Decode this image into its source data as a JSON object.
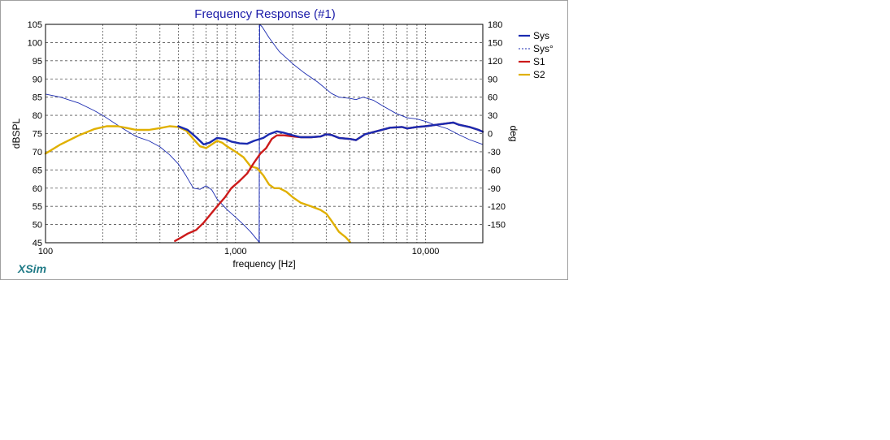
{
  "app": {
    "brand": "XSim"
  },
  "colors": {
    "sys": "#1a2ab0",
    "sys_phase": "#1a2ab0",
    "s1": "#cc1a1a",
    "s2": "#e0b000",
    "title": "#1a1aa8",
    "brand": "#1f7a86"
  },
  "chart_data": {
    "type": "line",
    "title": "Frequency Response (#1)",
    "xlabel": "frequency [Hz]",
    "ylabel": "dBSPL",
    "y2label": "deg",
    "xscale": "log",
    "xlim": [
      100,
      20000
    ],
    "ylim": [
      45,
      105
    ],
    "y2lim": [
      -180,
      180
    ],
    "grid": true,
    "legend": "right",
    "x_ticks": [
      {
        "value": 100,
        "label": "100"
      },
      {
        "value": 1000,
        "label": "1,000"
      },
      {
        "value": 10000,
        "label": "10,000"
      }
    ],
    "y_ticks": [
      45,
      50,
      55,
      60,
      65,
      70,
      75,
      80,
      85,
      90,
      95,
      100,
      105
    ],
    "y2_ticks": [
      -150,
      -120,
      -90,
      -60,
      -30,
      0,
      30,
      60,
      90,
      120,
      150,
      180
    ],
    "series": [
      {
        "name": "Sys",
        "axis": "left",
        "style": "solid-thick",
        "color": "#1a2ab0",
        "points": [
          [
            500,
            77.0
          ],
          [
            560,
            76.0
          ],
          [
            620,
            74.0
          ],
          [
            680,
            72.0
          ],
          [
            730,
            72.5
          ],
          [
            800,
            73.8
          ],
          [
            880,
            73.5
          ],
          [
            950,
            72.8
          ],
          [
            1050,
            72.3
          ],
          [
            1150,
            72.2
          ],
          [
            1250,
            73.0
          ],
          [
            1400,
            73.8
          ],
          [
            1500,
            74.8
          ],
          [
            1650,
            75.6
          ],
          [
            1800,
            75.2
          ],
          [
            2000,
            74.5
          ],
          [
            2200,
            74.0
          ],
          [
            2500,
            74.0
          ],
          [
            2800,
            74.2
          ],
          [
            3000,
            74.8
          ],
          [
            3200,
            74.6
          ],
          [
            3500,
            73.8
          ],
          [
            4000,
            73.5
          ],
          [
            4300,
            73.2
          ],
          [
            4800,
            74.8
          ],
          [
            5500,
            75.6
          ],
          [
            6500,
            76.6
          ],
          [
            7500,
            76.8
          ],
          [
            8000,
            76.4
          ],
          [
            9000,
            76.8
          ],
          [
            10000,
            77.0
          ],
          [
            11000,
            77.3
          ],
          [
            13000,
            77.8
          ],
          [
            14000,
            78.0
          ],
          [
            15000,
            77.4
          ],
          [
            17000,
            76.8
          ],
          [
            19000,
            76.0
          ],
          [
            20000,
            75.5
          ]
        ]
      },
      {
        "name": "Sys°",
        "axis": "right",
        "style": "thin",
        "color": "#1a2ab0",
        "points": [
          [
            100,
            65
          ],
          [
            120,
            60
          ],
          [
            150,
            50
          ],
          [
            180,
            38
          ],
          [
            200,
            30
          ],
          [
            250,
            10
          ],
          [
            300,
            -5
          ],
          [
            350,
            -12
          ],
          [
            400,
            -22
          ],
          [
            450,
            -35
          ],
          [
            500,
            -50
          ],
          [
            550,
            -70
          ],
          [
            600,
            -90
          ],
          [
            650,
            -92
          ],
          [
            700,
            -86
          ],
          [
            750,
            -93
          ],
          [
            800,
            -108
          ],
          [
            900,
            -125
          ],
          [
            1000,
            -138
          ],
          [
            1100,
            -150
          ],
          [
            1200,
            -162
          ],
          [
            1300,
            -175
          ],
          [
            1330,
            -179
          ],
          [
            1340,
            180
          ],
          [
            1380,
            176
          ],
          [
            1500,
            158
          ],
          [
            1700,
            135
          ],
          [
            2000,
            115
          ],
          [
            2300,
            100
          ],
          [
            2700,
            85
          ],
          [
            3200,
            66
          ],
          [
            3500,
            60
          ],
          [
            4000,
            58
          ],
          [
            4300,
            56
          ],
          [
            4700,
            60
          ],
          [
            5300,
            55
          ],
          [
            6000,
            45
          ],
          [
            7000,
            33
          ],
          [
            8000,
            26
          ],
          [
            9000,
            24
          ],
          [
            10000,
            20
          ],
          [
            11000,
            15
          ],
          [
            13000,
            8
          ],
          [
            15000,
            -2
          ],
          [
            17000,
            -10
          ],
          [
            20000,
            -18
          ]
        ]
      },
      {
        "name": "Sys°-wrap",
        "axis": "right",
        "style": "dashed",
        "color": "#1a2ab0",
        "points": [
          [
            1335,
            -180
          ],
          [
            1335,
            180
          ]
        ]
      },
      {
        "name": "S1",
        "axis": "left",
        "style": "solid-thick",
        "color": "#cc1a1a",
        "points": [
          [
            480,
            45.5
          ],
          [
            520,
            46.5
          ],
          [
            560,
            47.5
          ],
          [
            620,
            48.5
          ],
          [
            680,
            50.5
          ],
          [
            730,
            52.5
          ],
          [
            800,
            55.0
          ],
          [
            880,
            57.5
          ],
          [
            950,
            60.0
          ],
          [
            1050,
            62.0
          ],
          [
            1150,
            64.0
          ],
          [
            1250,
            67.0
          ],
          [
            1350,
            69.5
          ],
          [
            1450,
            71.0
          ],
          [
            1550,
            73.5
          ],
          [
            1650,
            74.5
          ],
          [
            1800,
            74.5
          ],
          [
            2000,
            74.2
          ],
          [
            2200,
            74.0
          ],
          [
            2500,
            74.0
          ],
          [
            2800,
            74.2
          ],
          [
            3000,
            74.8
          ],
          [
            3200,
            74.6
          ],
          [
            3500,
            73.8
          ],
          [
            4000,
            73.5
          ],
          [
            4300,
            73.2
          ],
          [
            4800,
            74.8
          ],
          [
            5500,
            75.6
          ],
          [
            6500,
            76.6
          ],
          [
            7500,
            76.8
          ],
          [
            8000,
            76.4
          ],
          [
            9000,
            76.8
          ],
          [
            10000,
            77.0
          ],
          [
            11000,
            77.3
          ],
          [
            13000,
            77.8
          ],
          [
            14000,
            78.0
          ],
          [
            15000,
            77.4
          ],
          [
            17000,
            76.8
          ],
          [
            19000,
            76.0
          ],
          [
            20000,
            75.5
          ]
        ]
      },
      {
        "name": "S2",
        "axis": "left",
        "style": "solid-thick",
        "color": "#e0b000",
        "points": [
          [
            100,
            69.5
          ],
          [
            120,
            72.0
          ],
          [
            150,
            74.5
          ],
          [
            180,
            76.2
          ],
          [
            210,
            77.0
          ],
          [
            240,
            77.0
          ],
          [
            270,
            76.5
          ],
          [
            300,
            76.0
          ],
          [
            350,
            76.0
          ],
          [
            400,
            76.5
          ],
          [
            450,
            77.0
          ],
          [
            500,
            76.8
          ],
          [
            550,
            75.8
          ],
          [
            600,
            73.5
          ],
          [
            650,
            71.5
          ],
          [
            700,
            71.0
          ],
          [
            750,
            72.0
          ],
          [
            800,
            73.0
          ],
          [
            850,
            72.5
          ],
          [
            900,
            71.5
          ],
          [
            1000,
            70.0
          ],
          [
            1100,
            68.5
          ],
          [
            1200,
            66.0
          ],
          [
            1300,
            65.5
          ],
          [
            1400,
            63.5
          ],
          [
            1500,
            61.0
          ],
          [
            1600,
            60.0
          ],
          [
            1700,
            60.0
          ],
          [
            1850,
            59.0
          ],
          [
            2000,
            57.5
          ],
          [
            2200,
            56.0
          ],
          [
            2500,
            55.0
          ],
          [
            2800,
            54.0
          ],
          [
            3000,
            53.0
          ],
          [
            3200,
            51.0
          ],
          [
            3500,
            48.0
          ],
          [
            3800,
            46.5
          ],
          [
            4000,
            45.2
          ]
        ]
      }
    ],
    "legend_items": [
      {
        "label": "Sys",
        "style": "solid",
        "color": "#1a2ab0"
      },
      {
        "label": "Sys°",
        "style": "dashed",
        "color": "#1a2ab0"
      },
      {
        "label": "S1",
        "style": "solid",
        "color": "#cc1a1a"
      },
      {
        "label": "S2",
        "style": "solid",
        "color": "#e0b000"
      }
    ]
  }
}
